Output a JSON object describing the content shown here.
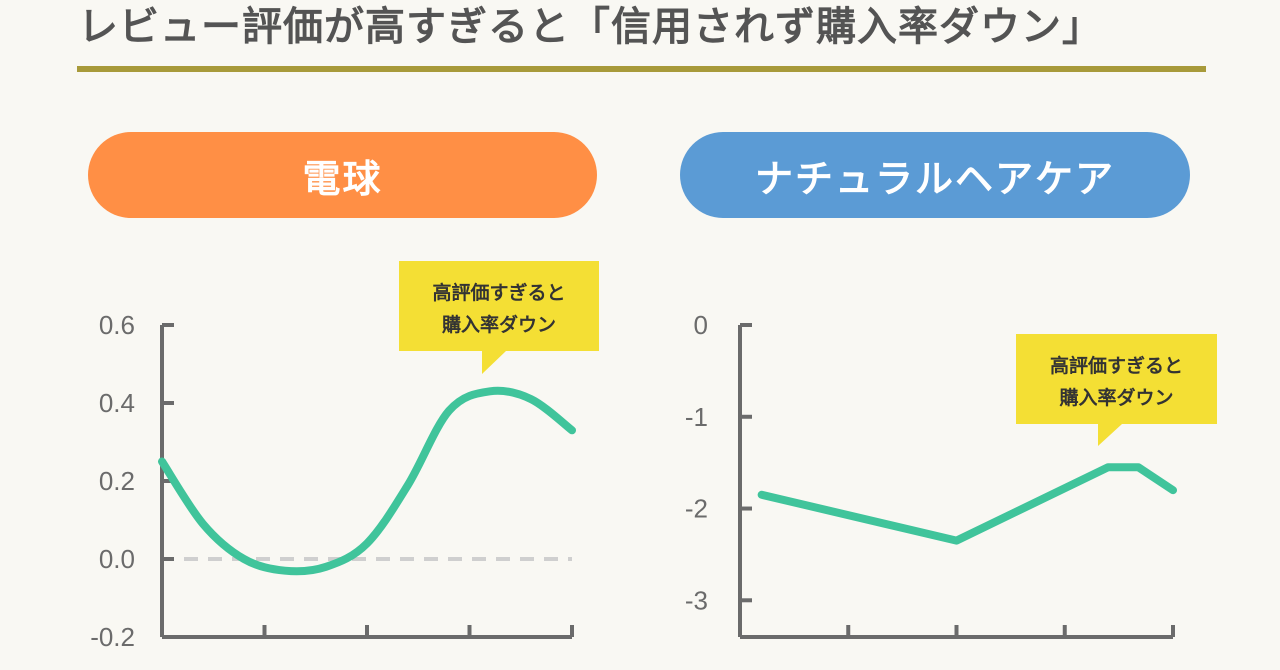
{
  "title": "レビュー評価が高すぎると「信用されず購入率ダウン」",
  "colors": {
    "line": "#40c49b",
    "axis": "#6b6b6b",
    "rule": "#a89a3a",
    "left_pill": "#ff8f45",
    "right_pill": "#5b9bd5",
    "callout": "#f4df34"
  },
  "panels": [
    {
      "label": "電球"
    },
    {
      "label": "ナチュラルヘアケア"
    }
  ],
  "chart_data": [
    {
      "type": "line",
      "title": "電球",
      "ylim": [
        -0.2,
        0.6
      ],
      "yticks": [
        "0.6",
        "0.4",
        "0.2",
        "0.0",
        "-0.2"
      ],
      "xlim": [
        4.0,
        5.0
      ],
      "reference_line_y": 0.0,
      "x": [
        4.0,
        4.1,
        4.2,
        4.3,
        4.4,
        4.5,
        4.6,
        4.7,
        4.8,
        4.9,
        5.0
      ],
      "values": [
        0.25,
        0.09,
        0.0,
        -0.03,
        -0.02,
        0.04,
        0.19,
        0.38,
        0.43,
        0.41,
        0.33
      ],
      "annotation": {
        "line1": "高評価すぎると",
        "line2": "購入率ダウン"
      }
    },
    {
      "type": "line",
      "title": "ナチュラルヘアケア",
      "ylim": [
        -3.4,
        0
      ],
      "yticks": [
        "0",
        "-1",
        "-2",
        "-3"
      ],
      "xlim": [
        4.0,
        5.0
      ],
      "x": [
        4.05,
        4.5,
        4.85,
        4.92,
        5.0
      ],
      "values": [
        -1.85,
        -2.35,
        -1.55,
        -1.55,
        -1.8
      ],
      "annotation": {
        "line1": "高評価すぎると",
        "line2": "購入率ダウン"
      }
    }
  ]
}
